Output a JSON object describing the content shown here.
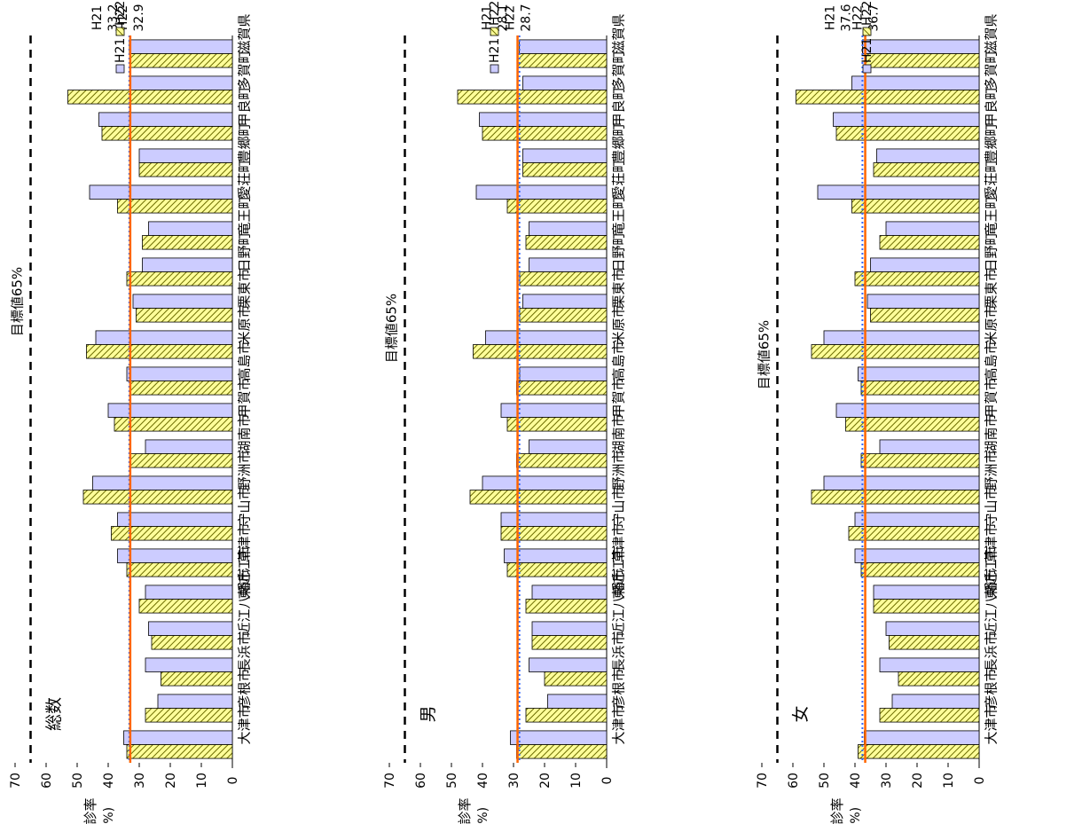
{
  "shared": {
    "ylabel": "受診率",
    "yunit": "(%)",
    "ylim": [
      0,
      70
    ],
    "yticks": [
      0,
      10,
      20,
      30,
      40,
      50,
      60,
      70
    ],
    "target_value": 65,
    "target_label": "目標値65%",
    "legend": [
      "H21",
      "H22"
    ],
    "colors": {
      "h21_fill": "#ccccff",
      "h22_fill": "#ffff99",
      "h22_hatch": "#6b6b00",
      "h21_ref_line": "#3366ff",
      "h22_ref_line": "#ff6600",
      "target_line": "#000000"
    },
    "categories": [
      "大津市",
      "彦根市",
      "長浜市",
      "近江八幡市",
      "東近江市",
      "草津市",
      "守山市",
      "野洲市",
      "湖南市",
      "甲賀市",
      "高島市",
      "米原市",
      "栗東市",
      "日野町",
      "竜王町",
      "愛荘町",
      "豊郷町",
      "甲良町",
      "多賀町",
      "滋賀県"
    ]
  },
  "chart_data": [
    {
      "type": "bar",
      "title": "総数",
      "ylabel": "受診率",
      "ylim": [
        0,
        70
      ],
      "categories": [
        "大津市",
        "彦根市",
        "長浜市",
        "近江八幡市",
        "東近江市",
        "草津市",
        "守山市",
        "野洲市",
        "湖南市",
        "甲賀市",
        "高島市",
        "米原市",
        "栗東市",
        "日野町",
        "竜王町",
        "愛荘町",
        "豊郷町",
        "甲良町",
        "多賀町",
        "滋賀県"
      ],
      "series": [
        {
          "name": "H21",
          "values": [
            35,
            24,
            28,
            27,
            28,
            37,
            37,
            45,
            28,
            40,
            34,
            44,
            32,
            29,
            27,
            46,
            30,
            43,
            33,
            33.2
          ]
        },
        {
          "name": "H22",
          "values": [
            34,
            28,
            23,
            26,
            30,
            34,
            39,
            48,
            33,
            38,
            33,
            47,
            31,
            34,
            29,
            37,
            30,
            42,
            53,
            32.9
          ]
        }
      ],
      "reference_lines": [
        {
          "series": "H21",
          "value": 33.2,
          "label": "33.2"
        },
        {
          "series": "H22",
          "value": 32.9,
          "label": "32.9"
        }
      ]
    },
    {
      "type": "bar",
      "title": "男",
      "ylabel": "受診率",
      "ylim": [
        0,
        70
      ],
      "categories": [
        "大津市",
        "彦根市",
        "長浜市",
        "近江八幡市",
        "東近江市",
        "草津市",
        "守山市",
        "野洲市",
        "湖南市",
        "甲賀市",
        "高島市",
        "米原市",
        "栗東市",
        "日野町",
        "竜王町",
        "愛荘町",
        "豊郷町",
        "甲良町",
        "多賀町",
        "滋賀県"
      ],
      "series": [
        {
          "name": "H21",
          "values": [
            31,
            19,
            25,
            24,
            24,
            33,
            34,
            40,
            25,
            34,
            28,
            39,
            27,
            25,
            25,
            42,
            27,
            41,
            27,
            28.1
          ]
        },
        {
          "name": "H22",
          "values": [
            29,
            26,
            20,
            24,
            26,
            32,
            34,
            44,
            29,
            32,
            29,
            43,
            28,
            28,
            26,
            32,
            27,
            40,
            48,
            28.7
          ]
        }
      ],
      "reference_lines": [
        {
          "series": "H21",
          "value": 28.1,
          "label": "28.1"
        },
        {
          "series": "H22",
          "value": 28.7,
          "label": "28.7"
        }
      ]
    },
    {
      "type": "bar",
      "title": "女",
      "ylabel": "受診率",
      "ylim": [
        0,
        70
      ],
      "categories": [
        "大津市",
        "彦根市",
        "長浜市",
        "近江八幡市",
        "東近江市",
        "草津市",
        "守山市",
        "野洲市",
        "湖南市",
        "甲賀市",
        "高島市",
        "米原市",
        "栗東市",
        "日野町",
        "竜王町",
        "愛荘町",
        "豊郷町",
        "甲良町",
        "多賀町",
        "滋賀県"
      ],
      "series": [
        {
          "name": "H21",
          "values": [
            37,
            28,
            32,
            30,
            34,
            40,
            40,
            50,
            32,
            46,
            39,
            50,
            36,
            35,
            30,
            52,
            33,
            47,
            41,
            37.6
          ]
        },
        {
          "name": "H22",
          "values": [
            39,
            32,
            26,
            29,
            34,
            38,
            42,
            54,
            38,
            43,
            38,
            54,
            35,
            40,
            32,
            41,
            34,
            46,
            59,
            36.7
          ]
        }
      ],
      "reference_lines": [
        {
          "series": "H21",
          "value": 37.6,
          "label": "37.6"
        },
        {
          "series": "H22",
          "value": 36.7,
          "label": "36.7"
        }
      ]
    }
  ]
}
